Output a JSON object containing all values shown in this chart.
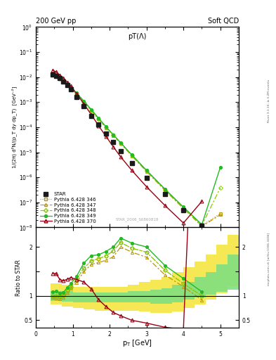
{
  "title_top_left": "200 GeV pp",
  "title_top_right": "Soft QCD",
  "plot_title": "pT(Λ)",
  "ylabel_main": "1/(2π) d²N/(p_T dy dp_T)  [GeV⁻²]",
  "ylabel_ratio": "Ratio to STAR",
  "xlabel": "p_T [GeV]",
  "watermark": "STAR_2006_S6860818",
  "right_label_top": "Rivet 3.1.10, ≥ 3.2M events",
  "right_label_bottom": "mcplots.cern.ch [arXiv:1306.3436]",
  "xlim": [
    0,
    5.5
  ],
  "ylim_main": [
    1e-08,
    1.0
  ],
  "ylim_ratio": [
    0.35,
    2.4
  ],
  "star_pt": [
    0.45,
    0.55,
    0.65,
    0.75,
    0.85,
    0.95,
    1.1,
    1.3,
    1.5,
    1.7,
    1.9,
    2.1,
    2.3,
    2.6,
    3.0,
    3.5,
    4.0,
    4.5
  ],
  "star_y": [
    0.013,
    0.011,
    0.009,
    0.0068,
    0.0047,
    0.0032,
    0.00165,
    0.00067,
    0.00028,
    0.000125,
    5.5e-05,
    2.5e-05,
    1.1e-05,
    3.8e-06,
    9.5e-07,
    2.1e-07,
    4.8e-08,
    1.2e-08
  ],
  "star_yerr": [
    0.001,
    0.0008,
    0.0007,
    0.0005,
    0.0004,
    0.0003,
    0.00014,
    5.5e-05,
    2.3e-05,
    1e-05,
    4.5e-06,
    2.1e-06,
    9e-07,
    3.2e-07,
    9e-08,
    2.8e-08,
    7e-09,
    2e-09
  ],
  "py346_pt": [
    0.45,
    0.55,
    0.65,
    0.75,
    0.85,
    0.95,
    1.1,
    1.3,
    1.5,
    1.7,
    1.9,
    2.1,
    2.3,
    2.6,
    3.0,
    3.5,
    4.0,
    4.5,
    5.0
  ],
  "py346_y": [
    0.013,
    0.011,
    0.0088,
    0.0069,
    0.0052,
    0.0038,
    0.0022,
    0.00105,
    0.00048,
    0.00022,
    0.0001,
    4.8e-05,
    2.3e-05,
    7.5e-06,
    1.8e-06,
    3.2e-07,
    6e-08,
    1.2e-08,
    3.5e-08
  ],
  "py347_pt": [
    0.45,
    0.55,
    0.65,
    0.75,
    0.85,
    0.95,
    1.1,
    1.3,
    1.5,
    1.7,
    1.9,
    2.1,
    2.3,
    2.6,
    3.0,
    3.5,
    4.0,
    4.5,
    5.0
  ],
  "py347_y": [
    0.0125,
    0.0105,
    0.0085,
    0.0066,
    0.005,
    0.0037,
    0.0021,
    0.001,
    0.00046,
    0.00021,
    9.5e-05,
    4.5e-05,
    2.2e-05,
    7.2e-06,
    1.7e-06,
    3e-07,
    5.7e-08,
    1.1e-08,
    3.2e-08
  ],
  "py348_pt": [
    0.45,
    0.55,
    0.65,
    0.75,
    0.85,
    0.95,
    1.1,
    1.3,
    1.5,
    1.7,
    1.9,
    2.1,
    2.3,
    2.6,
    3.0,
    3.5,
    4.0,
    4.5,
    5.0
  ],
  "py348_y": [
    0.013,
    0.011,
    0.0088,
    0.0069,
    0.0052,
    0.0038,
    0.0022,
    0.00105,
    0.00048,
    0.00022,
    0.0001,
    4.8e-05,
    2.3e-05,
    7.5e-06,
    1.8e-06,
    3.2e-07,
    6e-08,
    1.2e-08,
    3.8e-07
  ],
  "py349_pt": [
    0.45,
    0.55,
    0.65,
    0.75,
    0.85,
    0.95,
    1.1,
    1.3,
    1.5,
    1.7,
    1.9,
    2.1,
    2.3,
    2.6,
    3.0,
    3.5,
    4.0,
    4.5,
    5.0
  ],
  "py349_y": [
    0.014,
    0.012,
    0.0095,
    0.0073,
    0.0055,
    0.004,
    0.0023,
    0.00112,
    0.00051,
    0.00023,
    0.000105,
    5e-05,
    2.4e-05,
    7.9e-06,
    1.9e-06,
    3.4e-07,
    6.5e-08,
    1.3e-08,
    2.5e-06
  ],
  "py370_pt": [
    0.45,
    0.55,
    0.65,
    0.75,
    0.85,
    0.95,
    1.1,
    1.3,
    1.5,
    1.7,
    1.9,
    2.1,
    2.3,
    2.6,
    3.0,
    3.5,
    4.0,
    4.5
  ],
  "py370_y": [
    0.019,
    0.016,
    0.012,
    0.0089,
    0.0063,
    0.0044,
    0.0022,
    0.00086,
    0.00032,
    0.000115,
    4.3e-05,
    1.65e-05,
    6.5e-06,
    1.9e-06,
    4.2e-07,
    7.5e-08,
    1.5e-08,
    1.1e-07
  ],
  "color_star": "#1a1a1a",
  "color_346": "#b8960c",
  "color_347": "#b8960c",
  "color_348": "#88cc00",
  "color_349": "#22bb22",
  "color_370": "#990011",
  "band_yellow_lo": [
    0.82,
    0.78,
    0.75,
    0.72,
    0.7,
    0.7,
    0.7,
    0.7,
    0.68,
    0.65,
    0.65,
    0.68,
    0.75,
    0.82,
    0.92,
    1.05,
    1.2
  ],
  "band_yellow_hi": [
    1.25,
    1.22,
    1.18,
    1.18,
    1.18,
    1.18,
    1.18,
    1.22,
    1.28,
    1.32,
    1.38,
    1.48,
    1.58,
    1.7,
    1.85,
    2.05,
    2.25
  ],
  "band_green_lo": [
    0.9,
    0.88,
    0.86,
    0.86,
    0.86,
    0.86,
    0.86,
    0.87,
    0.86,
    0.84,
    0.84,
    0.87,
    0.92,
    0.97,
    1.02,
    1.08,
    1.12
  ],
  "band_green_hi": [
    1.1,
    1.09,
    1.07,
    1.07,
    1.07,
    1.07,
    1.07,
    1.09,
    1.1,
    1.13,
    1.16,
    1.22,
    1.28,
    1.38,
    1.48,
    1.65,
    1.85
  ],
  "band_edges": [
    0.4,
    0.7,
    1.0,
    1.3,
    1.6,
    1.9,
    2.2,
    2.5,
    2.8,
    3.1,
    3.4,
    3.7,
    4.0,
    4.3,
    4.6,
    4.9,
    5.2,
    5.5
  ]
}
